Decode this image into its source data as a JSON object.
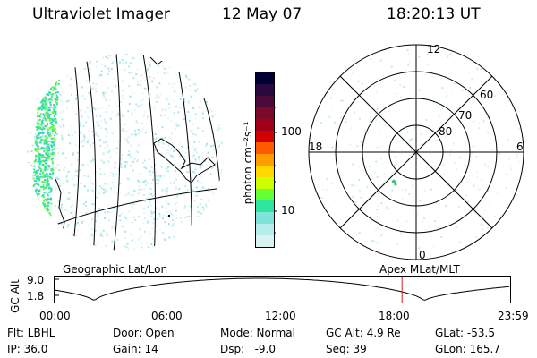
{
  "header": {
    "instrument": "Ultraviolet Imager",
    "date": "12 May 07",
    "time": "18:20:13 UT"
  },
  "colorbar": {
    "unit_label": "photon cm⁻²s⁻¹",
    "ticks": [
      "100",
      "10"
    ],
    "colors": [
      "#000033",
      "#2a0a3e",
      "#4b0a3a",
      "#7a0a2a",
      "#a00018",
      "#d20000",
      "#ff5a00",
      "#ff9d00",
      "#ffd800",
      "#ccff00",
      "#66ff33",
      "#2ee5a0",
      "#7fe3d8",
      "#b6ecea",
      "#d9f3f2"
    ]
  },
  "polar_plot": {
    "lat_labels": [
      "80",
      "70",
      "60"
    ],
    "mlt_labels": [
      "12",
      "18",
      "6",
      "0"
    ]
  },
  "timeline": {
    "ylabel": "GC Alt",
    "y_ticks": [
      "9.0",
      "1.8"
    ],
    "left_title": "Geographic Lat/Lon",
    "right_title": "Apex MLat/MLT",
    "x_ticks": [
      "00:00",
      "06:00",
      "12:00",
      "18:00",
      "23:59"
    ],
    "marker_time_hours": 18.34
  },
  "footer": {
    "row1": [
      "Flt: LBHL",
      "Door: Open",
      "Mode: Normal",
      "GC Alt: 4.9 Re",
      "GLat: -53.5"
    ],
    "row2": [
      "IP: 36.0",
      "Gain: 14",
      "Dsp:   -9.0",
      "Seq: 39",
      "GLon: 165.7"
    ]
  }
}
